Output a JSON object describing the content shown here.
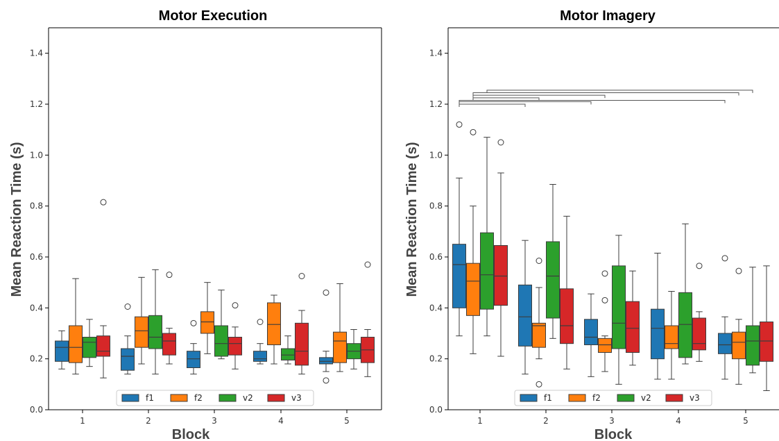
{
  "chart_data": [
    {
      "type": "box",
      "title": "Motor Execution",
      "xlabel": "Block",
      "ylabel": "Mean Reaction Time (s)",
      "ylim": [
        0.0,
        1.5
      ],
      "yticks": [
        "0.0",
        "0.2",
        "0.4",
        "0.6",
        "0.8",
        "1.0",
        "1.2",
        "1.4"
      ],
      "categories": [
        "1",
        "2",
        "3",
        "4",
        "5"
      ],
      "legend": {
        "position": "bottom-center",
        "entries": [
          "f1",
          "f2",
          "v2",
          "v3"
        ]
      },
      "series": [
        {
          "name": "f1",
          "color": "#1f77b4",
          "boxes": [
            {
              "whislo": 0.16,
              "q1": 0.19,
              "med": 0.245,
              "q3": 0.27,
              "whishi": 0.31,
              "fliers": []
            },
            {
              "whislo": 0.14,
              "q1": 0.155,
              "med": 0.21,
              "q3": 0.24,
              "whishi": 0.29,
              "fliers": [
                0.405
              ]
            },
            {
              "whislo": 0.14,
              "q1": 0.165,
              "med": 0.2,
              "q3": 0.23,
              "whishi": 0.26,
              "fliers": [
                0.34
              ]
            },
            {
              "whislo": 0.18,
              "q1": 0.19,
              "med": 0.2,
              "q3": 0.23,
              "whishi": 0.26,
              "fliers": [
                0.345
              ]
            },
            {
              "whislo": 0.15,
              "q1": 0.18,
              "med": 0.19,
              "q3": 0.205,
              "whishi": 0.23,
              "fliers": [
                0.115,
                0.46
              ]
            }
          ]
        },
        {
          "name": "f2",
          "color": "#ff7f0e",
          "boxes": [
            {
              "whislo": 0.14,
              "q1": 0.185,
              "med": 0.245,
              "q3": 0.33,
              "whishi": 0.515,
              "fliers": []
            },
            {
              "whislo": 0.18,
              "q1": 0.245,
              "med": 0.31,
              "q3": 0.365,
              "whishi": 0.52,
              "fliers": []
            },
            {
              "whislo": 0.22,
              "q1": 0.3,
              "med": 0.345,
              "q3": 0.385,
              "whishi": 0.5,
              "fliers": []
            },
            {
              "whislo": 0.18,
              "q1": 0.255,
              "med": 0.335,
              "q3": 0.42,
              "whishi": 0.45,
              "fliers": []
            },
            {
              "whislo": 0.15,
              "q1": 0.185,
              "med": 0.27,
              "q3": 0.305,
              "whishi": 0.495,
              "fliers": []
            }
          ]
        },
        {
          "name": "v2",
          "color": "#2ca02c",
          "boxes": [
            {
              "whislo": 0.17,
              "q1": 0.205,
              "med": 0.265,
              "q3": 0.285,
              "whishi": 0.355,
              "fliers": []
            },
            {
              "whislo": 0.14,
              "q1": 0.24,
              "med": 0.285,
              "q3": 0.37,
              "whishi": 0.55,
              "fliers": []
            },
            {
              "whislo": 0.2,
              "q1": 0.21,
              "med": 0.26,
              "q3": 0.33,
              "whishi": 0.47,
              "fliers": []
            },
            {
              "whislo": 0.18,
              "q1": 0.195,
              "med": 0.215,
              "q3": 0.24,
              "whishi": 0.29,
              "fliers": []
            },
            {
              "whislo": 0.16,
              "q1": 0.2,
              "med": 0.23,
              "q3": 0.26,
              "whishi": 0.315,
              "fliers": []
            }
          ]
        },
        {
          "name": "v3",
          "color": "#d62728",
          "boxes": [
            {
              "whislo": 0.125,
              "q1": 0.21,
              "med": 0.23,
              "q3": 0.29,
              "whishi": 0.33,
              "fliers": [
                0.815
              ]
            },
            {
              "whislo": 0.18,
              "q1": 0.215,
              "med": 0.27,
              "q3": 0.3,
              "whishi": 0.32,
              "fliers": [
                0.53
              ]
            },
            {
              "whislo": 0.16,
              "q1": 0.215,
              "med": 0.26,
              "q3": 0.285,
              "whishi": 0.325,
              "fliers": [
                0.41
              ]
            },
            {
              "whislo": 0.14,
              "q1": 0.175,
              "med": 0.23,
              "q3": 0.34,
              "whishi": 0.39,
              "fliers": [
                0.525
              ]
            },
            {
              "whislo": 0.13,
              "q1": 0.185,
              "med": 0.235,
              "q3": 0.285,
              "whishi": 0.315,
              "fliers": [
                0.57
              ]
            }
          ]
        }
      ]
    },
    {
      "type": "box",
      "title": "Motor Imagery",
      "xlabel": "Block",
      "ylabel": "Mean Reaction Time (s)",
      "ylim": [
        0.0,
        1.5
      ],
      "yticks": [
        "0.0",
        "0.2",
        "0.4",
        "0.6",
        "0.8",
        "1.0",
        "1.2",
        "1.4"
      ],
      "categories": [
        "1",
        "2",
        "3",
        "4",
        "5"
      ],
      "legend": {
        "position": "bottom-center",
        "entries": [
          "f1",
          "f2",
          "v2",
          "v3"
        ]
      },
      "series": [
        {
          "name": "f1",
          "color": "#1f77b4",
          "boxes": [
            {
              "whislo": 0.29,
              "q1": 0.4,
              "med": 0.57,
              "q3": 0.65,
              "whishi": 0.91,
              "fliers": [
                1.12
              ]
            },
            {
              "whislo": 0.14,
              "q1": 0.25,
              "med": 0.365,
              "q3": 0.49,
              "whishi": 0.665,
              "fliers": []
            },
            {
              "whislo": 0.13,
              "q1": 0.255,
              "med": 0.285,
              "q3": 0.355,
              "whishi": 0.455,
              "fliers": []
            },
            {
              "whislo": 0.12,
              "q1": 0.2,
              "med": 0.32,
              "q3": 0.395,
              "whishi": 0.615,
              "fliers": []
            },
            {
              "whislo": 0.12,
              "q1": 0.22,
              "med": 0.255,
              "q3": 0.3,
              "whishi": 0.365,
              "fliers": [
                0.595
              ]
            }
          ]
        },
        {
          "name": "f2",
          "color": "#ff7f0e",
          "boxes": [
            {
              "whislo": 0.22,
              "q1": 0.37,
              "med": 0.505,
              "q3": 0.575,
              "whishi": 0.8,
              "fliers": [
                1.09
              ]
            },
            {
              "whislo": 0.2,
              "q1": 0.245,
              "med": 0.33,
              "q3": 0.34,
              "whishi": 0.48,
              "fliers": [
                0.1,
                0.585
              ]
            },
            {
              "whislo": 0.15,
              "q1": 0.225,
              "med": 0.255,
              "q3": 0.28,
              "whishi": 0.29,
              "fliers": [
                0.43,
                0.535
              ]
            },
            {
              "whislo": 0.12,
              "q1": 0.24,
              "med": 0.26,
              "q3": 0.33,
              "whishi": 0.465,
              "fliers": []
            },
            {
              "whislo": 0.1,
              "q1": 0.2,
              "med": 0.265,
              "q3": 0.305,
              "whishi": 0.355,
              "fliers": [
                0.545
              ]
            }
          ]
        },
        {
          "name": "v2",
          "color": "#2ca02c",
          "boxes": [
            {
              "whislo": 0.29,
              "q1": 0.395,
              "med": 0.53,
              "q3": 0.695,
              "whishi": 1.07,
              "fliers": []
            },
            {
              "whislo": 0.28,
              "q1": 0.36,
              "med": 0.525,
              "q3": 0.66,
              "whishi": 0.885,
              "fliers": []
            },
            {
              "whislo": 0.1,
              "q1": 0.24,
              "med": 0.34,
              "q3": 0.565,
              "whishi": 0.685,
              "fliers": []
            },
            {
              "whislo": 0.18,
              "q1": 0.205,
              "med": 0.335,
              "q3": 0.46,
              "whishi": 0.73,
              "fliers": []
            },
            {
              "whislo": 0.145,
              "q1": 0.175,
              "med": 0.27,
              "q3": 0.33,
              "whishi": 0.56,
              "fliers": []
            }
          ]
        },
        {
          "name": "v3",
          "color": "#d62728",
          "boxes": [
            {
              "whislo": 0.21,
              "q1": 0.41,
              "med": 0.525,
              "q3": 0.645,
              "whishi": 0.93,
              "fliers": [
                1.05
              ]
            },
            {
              "whislo": 0.16,
              "q1": 0.26,
              "med": 0.33,
              "q3": 0.475,
              "whishi": 0.76,
              "fliers": []
            },
            {
              "whislo": 0.175,
              "q1": 0.225,
              "med": 0.32,
              "q3": 0.425,
              "whishi": 0.545,
              "fliers": []
            },
            {
              "whislo": 0.19,
              "q1": 0.235,
              "med": 0.26,
              "q3": 0.36,
              "whishi": 0.385,
              "fliers": [
                0.565
              ]
            },
            {
              "whislo": 0.075,
              "q1": 0.19,
              "med": 0.27,
              "q3": 0.345,
              "whishi": 0.565,
              "fliers": []
            }
          ]
        }
      ],
      "significance_brackets": [
        {
          "from": "Block 1 f1",
          "to": "Block 2 f1",
          "y": 1.2
        },
        {
          "from": "Block 1 f1",
          "to": "Block 3 f1",
          "y": 1.21
        },
        {
          "from": "Block 1 f1",
          "to": "Block 5 f1",
          "y": 1.215
        },
        {
          "from": "Block 1 f2",
          "to": "Block 2 f2",
          "y": 1.225
        },
        {
          "from": "Block 1 f2",
          "to": "Block 3 f2",
          "y": 1.235
        },
        {
          "from": "Block 1 f2",
          "to": "Block 5 f2",
          "y": 1.245
        },
        {
          "from": "Block 1 v2",
          "to": "Block 5 v2",
          "y": 1.255
        }
      ]
    }
  ]
}
